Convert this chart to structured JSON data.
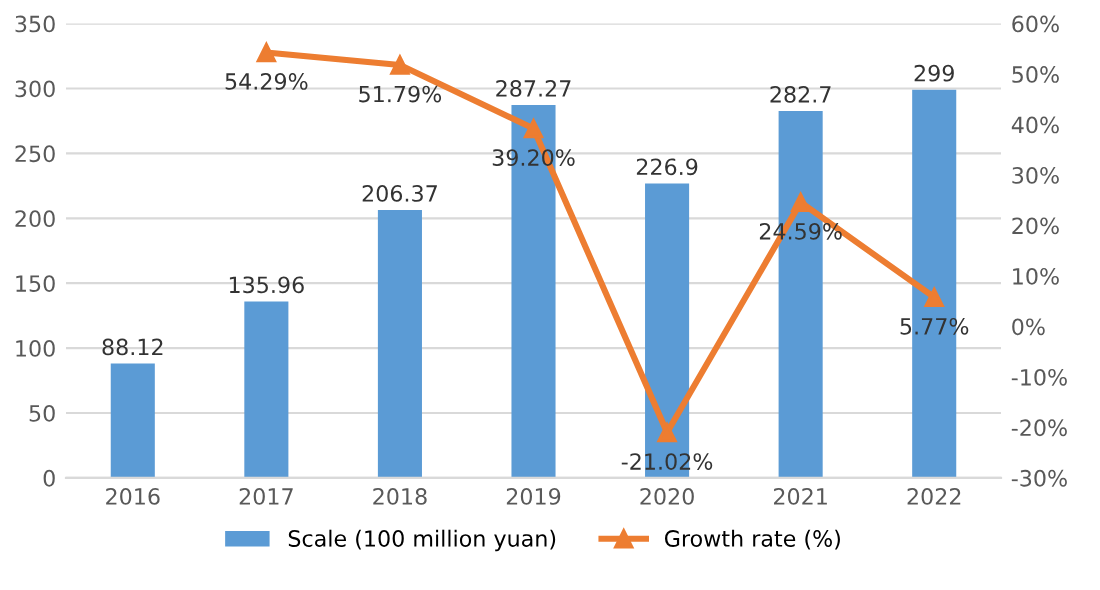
{
  "chart_data": {
    "type": "bar",
    "categories": [
      "2016",
      "2017",
      "2018",
      "2019",
      "2020",
      "2021",
      "2022"
    ],
    "series": [
      {
        "name": "Scale (100 million yuan)",
        "color": "#5b9bd5",
        "values": [
          88.12,
          135.96,
          206.37,
          287.27,
          226.9,
          282.7,
          299
        ],
        "value_labels": [
          "88.12",
          "135.96",
          "206.37",
          "287.27",
          "226.9",
          "282.7",
          "299"
        ]
      },
      {
        "name": "Growth rate (%)",
        "type": "line",
        "axis": "y2",
        "color": "#ed7d31",
        "marker": "triangle",
        "values": [
          null,
          54.29,
          51.79,
          39.2,
          -21.02,
          24.59,
          5.77
        ],
        "value_labels": [
          null,
          "54.29%",
          "51.79%",
          "39.20%",
          "-21.02%",
          "24.59%",
          "5.77%"
        ]
      }
    ],
    "ylim": [
      0,
      350
    ],
    "yticks": [
      0,
      50,
      100,
      150,
      200,
      250,
      300,
      350
    ],
    "y2lim": [
      -30,
      60
    ],
    "y2ticks": [
      {
        "value": -30,
        "label": "-30%"
      },
      {
        "value": -20,
        "label": "-20%"
      },
      {
        "value": -10,
        "label": "-10%"
      },
      {
        "value": 0,
        "label": "0%"
      },
      {
        "value": 10,
        "label": "10%"
      },
      {
        "value": 20,
        "label": "20%"
      },
      {
        "value": 30,
        "label": "30%"
      },
      {
        "value": 40,
        "label": "40%"
      },
      {
        "value": 50,
        "label": "50%"
      },
      {
        "value": 60,
        "label": "60%"
      }
    ],
    "grid": "y",
    "legend": "bottom"
  }
}
